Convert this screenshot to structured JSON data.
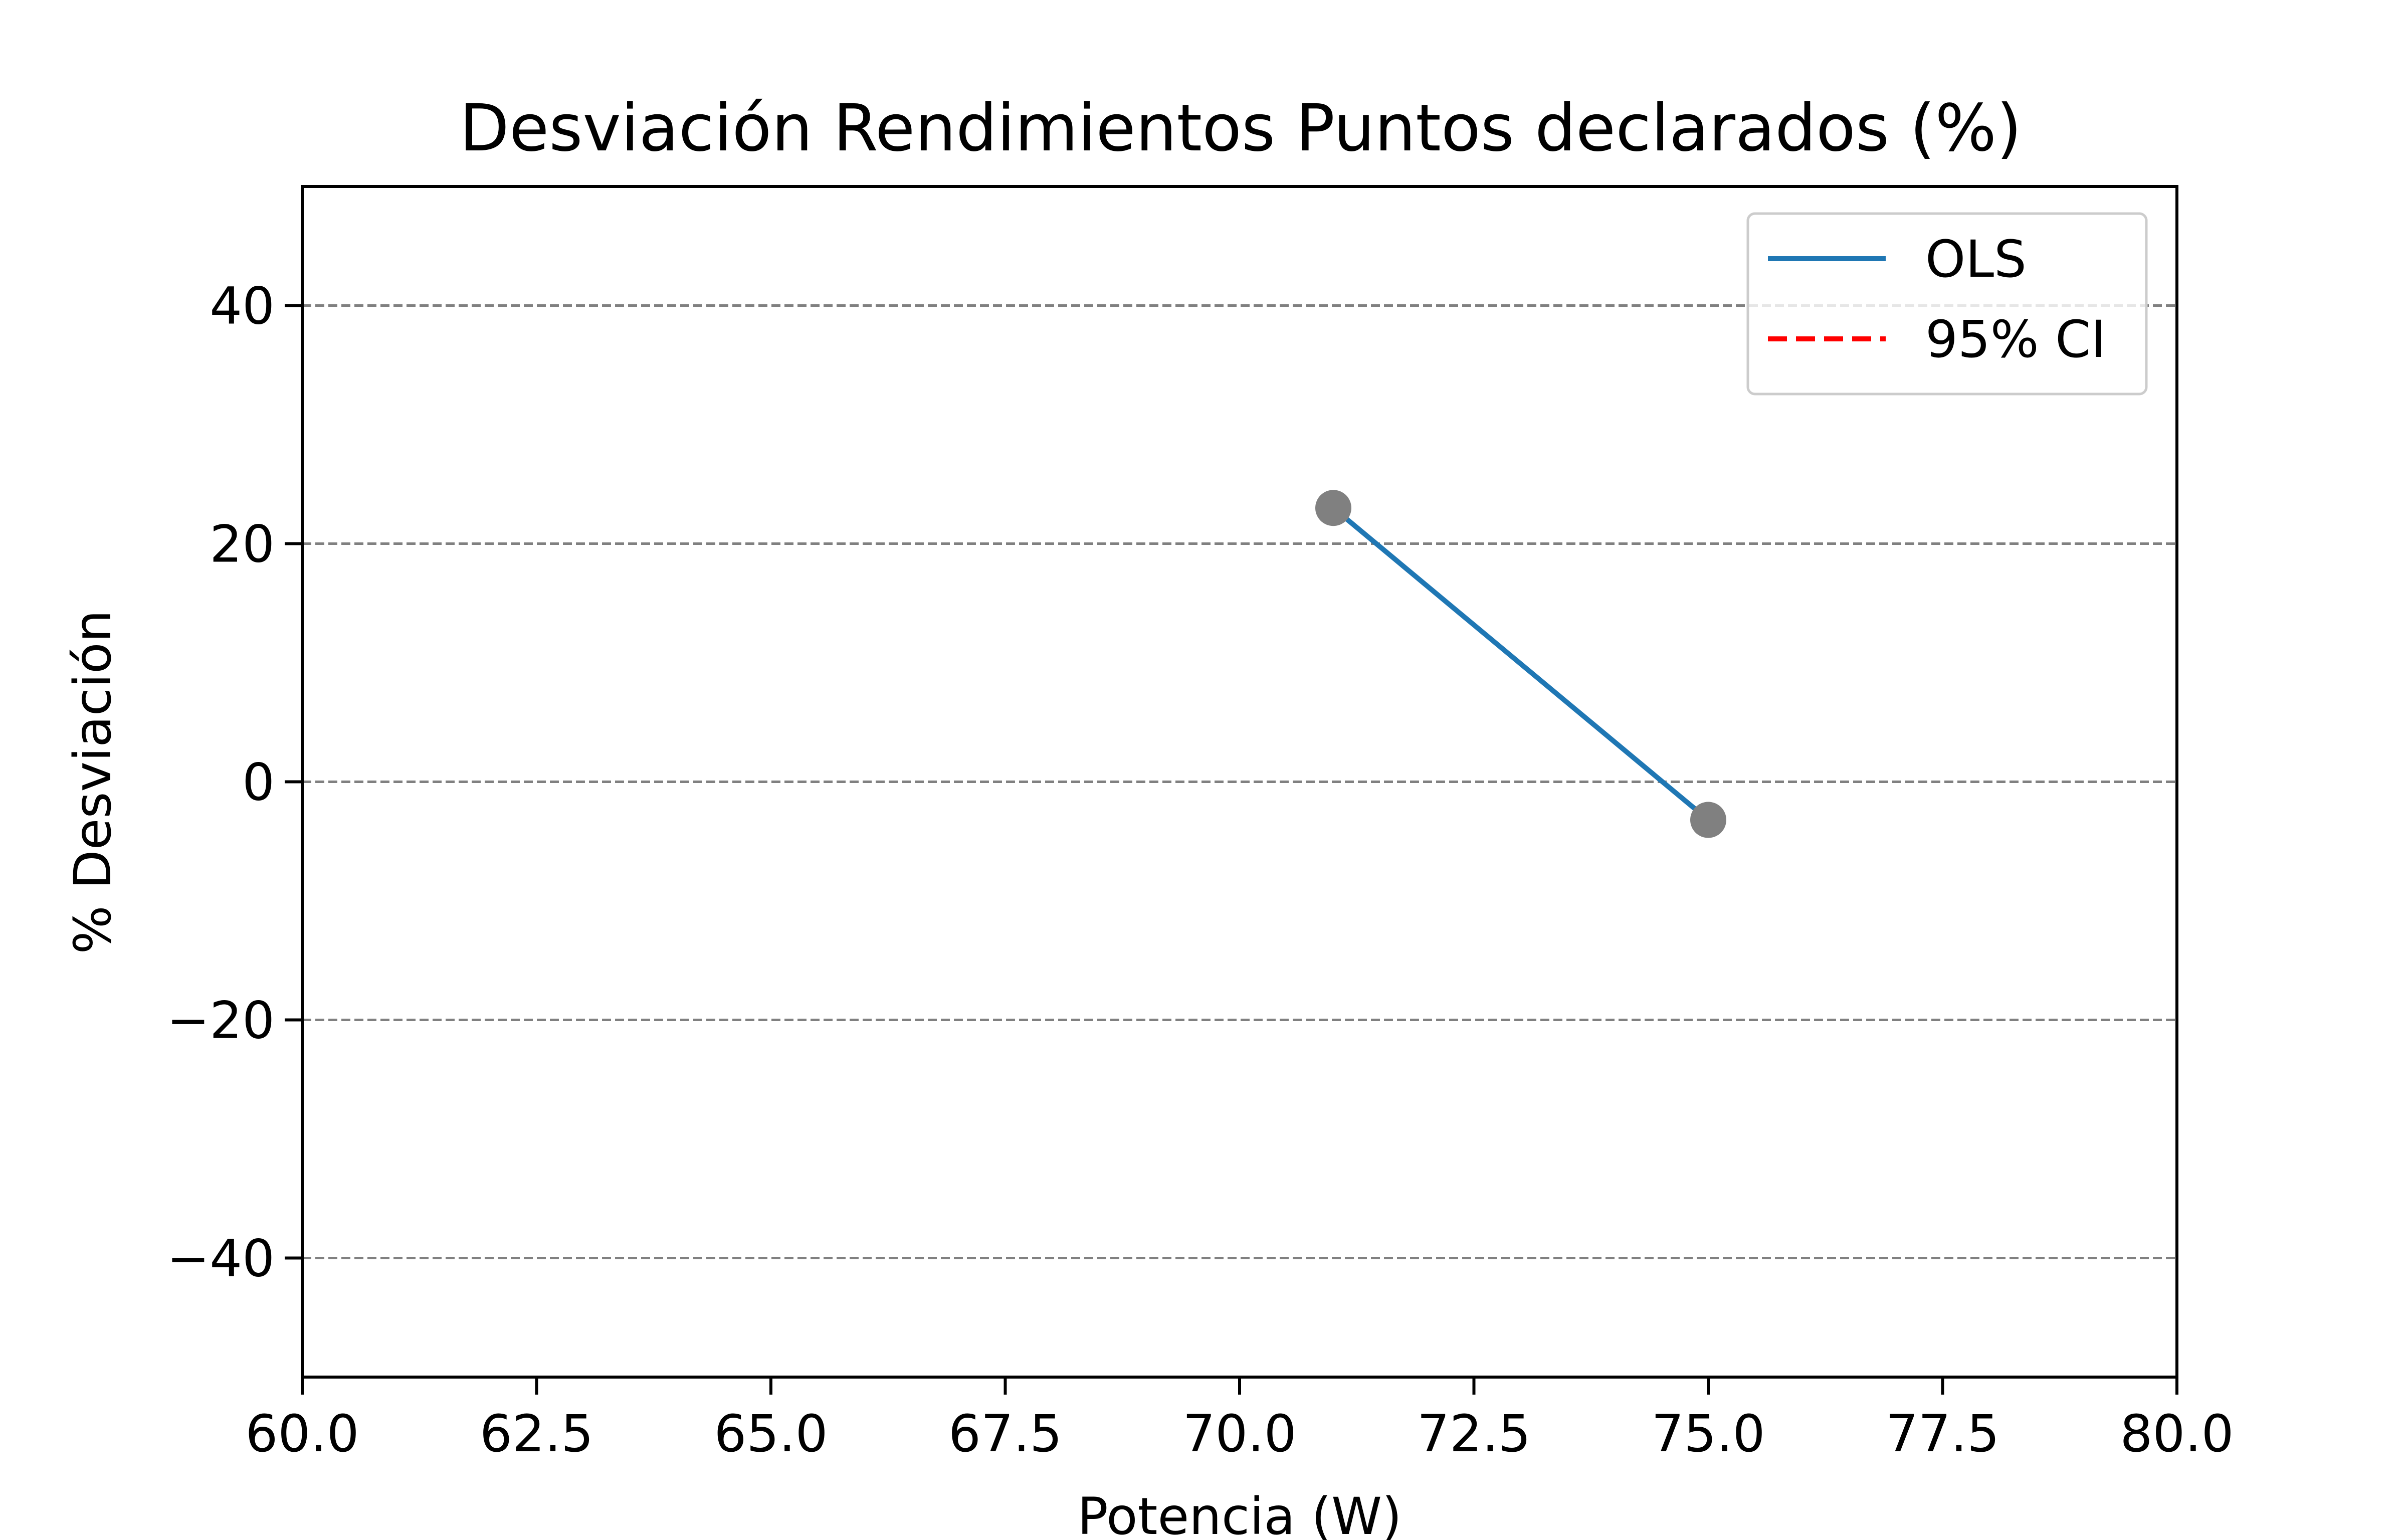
{
  "chart_data": {
    "type": "line",
    "title": "Desviación Rendimientos Puntos declarados (%)",
    "xlabel": "Potencia (W)",
    "ylabel": "% Desviación",
    "xlim": [
      60.0,
      80.0
    ],
    "ylim": [
      -50,
      50
    ],
    "xticks": [
      "60.0",
      "62.5",
      "65.0",
      "67.5",
      "70.0",
      "72.5",
      "75.0",
      "77.5",
      "80.0"
    ],
    "xtick_values": [
      60.0,
      62.5,
      65.0,
      67.5,
      70.0,
      72.5,
      75.0,
      77.5,
      80.0
    ],
    "yticks": [
      "−40",
      "−20",
      "0",
      "20",
      "40"
    ],
    "ytick_values": [
      -40,
      -20,
      0,
      20,
      40
    ],
    "grid": "horizontal-dashed",
    "legend_position": "top-right",
    "points": {
      "x": [
        71.0,
        75.0
      ],
      "y": [
        23.0,
        -3.2
      ],
      "color": "#808080"
    },
    "series": [
      {
        "name": "OLS",
        "style": "solid",
        "color": "#1f77b4",
        "x": [
          71.0,
          75.0
        ],
        "y": [
          23.0,
          -3.2
        ]
      },
      {
        "name": "95% CI",
        "style": "dashed",
        "color": "#ff0000",
        "x": [],
        "y": []
      }
    ]
  }
}
